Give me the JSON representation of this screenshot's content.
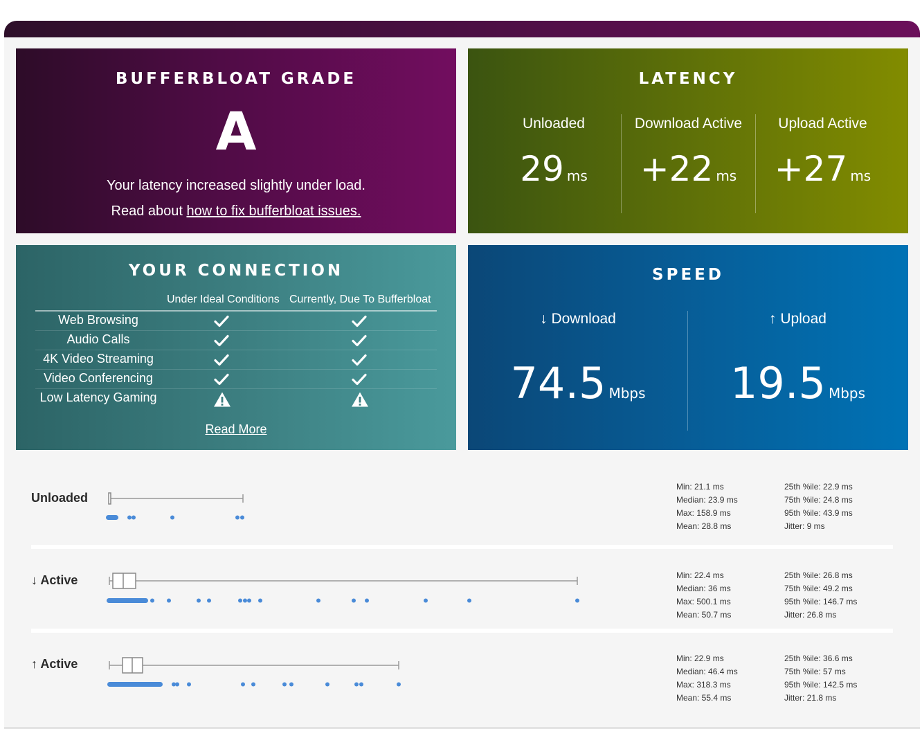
{
  "grade": {
    "title": "BUFFERBLOAT GRADE",
    "letter": "A",
    "line1": "Your latency increased slightly under load.",
    "line2_prefix": "Read about ",
    "line2_link": "how to fix bufferbloat issues."
  },
  "latency": {
    "title": "LATENCY",
    "unit": "ms",
    "columns": [
      {
        "label": "Unloaded",
        "value": "29"
      },
      {
        "label": "Download Active",
        "value": "+22"
      },
      {
        "label": "Upload Active",
        "value": "+27"
      }
    ]
  },
  "connection": {
    "title": "YOUR CONNECTION",
    "col_ideal": "Under Ideal Conditions",
    "col_current": "Currently, Due To Bufferbloat",
    "rows": [
      {
        "name": "Web Browsing",
        "ideal": "check-icon",
        "current": "check-icon"
      },
      {
        "name": "Audio Calls",
        "ideal": "check-icon",
        "current": "check-icon"
      },
      {
        "name": "4K Video Streaming",
        "ideal": "check-icon",
        "current": "check-icon"
      },
      {
        "name": "Video Conferencing",
        "ideal": "check-icon",
        "current": "check-icon"
      },
      {
        "name": "Low Latency Gaming",
        "ideal": "warning-icon",
        "current": "warning-icon"
      }
    ],
    "read_more": "Read More"
  },
  "speed": {
    "title": "SPEED",
    "unit": "Mbps",
    "download_label": "↓ Download",
    "download_value": "74.5",
    "upload_label": "↑ Upload",
    "upload_value": "19.5"
  },
  "stats": [
    {
      "label": "Unloaded",
      "min": "Min: 21.1 ms",
      "median": "Median: 23.9 ms",
      "max": "Max: 158.9 ms",
      "mean": "Mean: 28.8 ms",
      "p25": "25th %ile: 22.9 ms",
      "p75": "75th %ile: 24.8 ms",
      "p95": "95th %ile: 43.9 ms",
      "jitter": "Jitter: 9 ms"
    },
    {
      "label": "↓ Active",
      "min": "Min: 22.4 ms",
      "median": "Median: 36 ms",
      "max": "Max: 500.1 ms",
      "mean": "Mean: 50.7 ms",
      "p25": "25th %ile: 26.8 ms",
      "p75": "75th %ile: 49.2 ms",
      "p95": "95th %ile: 146.7 ms",
      "jitter": "Jitter: 26.8 ms"
    },
    {
      "label": "↑ Active",
      "min": "Min: 22.9 ms",
      "median": "Median: 46.4 ms",
      "max": "Max: 318.3 ms",
      "mean": "Mean: 55.4 ms",
      "p25": "25th %ile: 36.6 ms",
      "p75": "75th %ile: 57 ms",
      "p95": "95th %ile: 142.5 ms",
      "jitter": "Jitter: 21.8 ms"
    }
  ],
  "colors": {
    "dot": "#4a8bd8",
    "whisker": "#999999"
  }
}
